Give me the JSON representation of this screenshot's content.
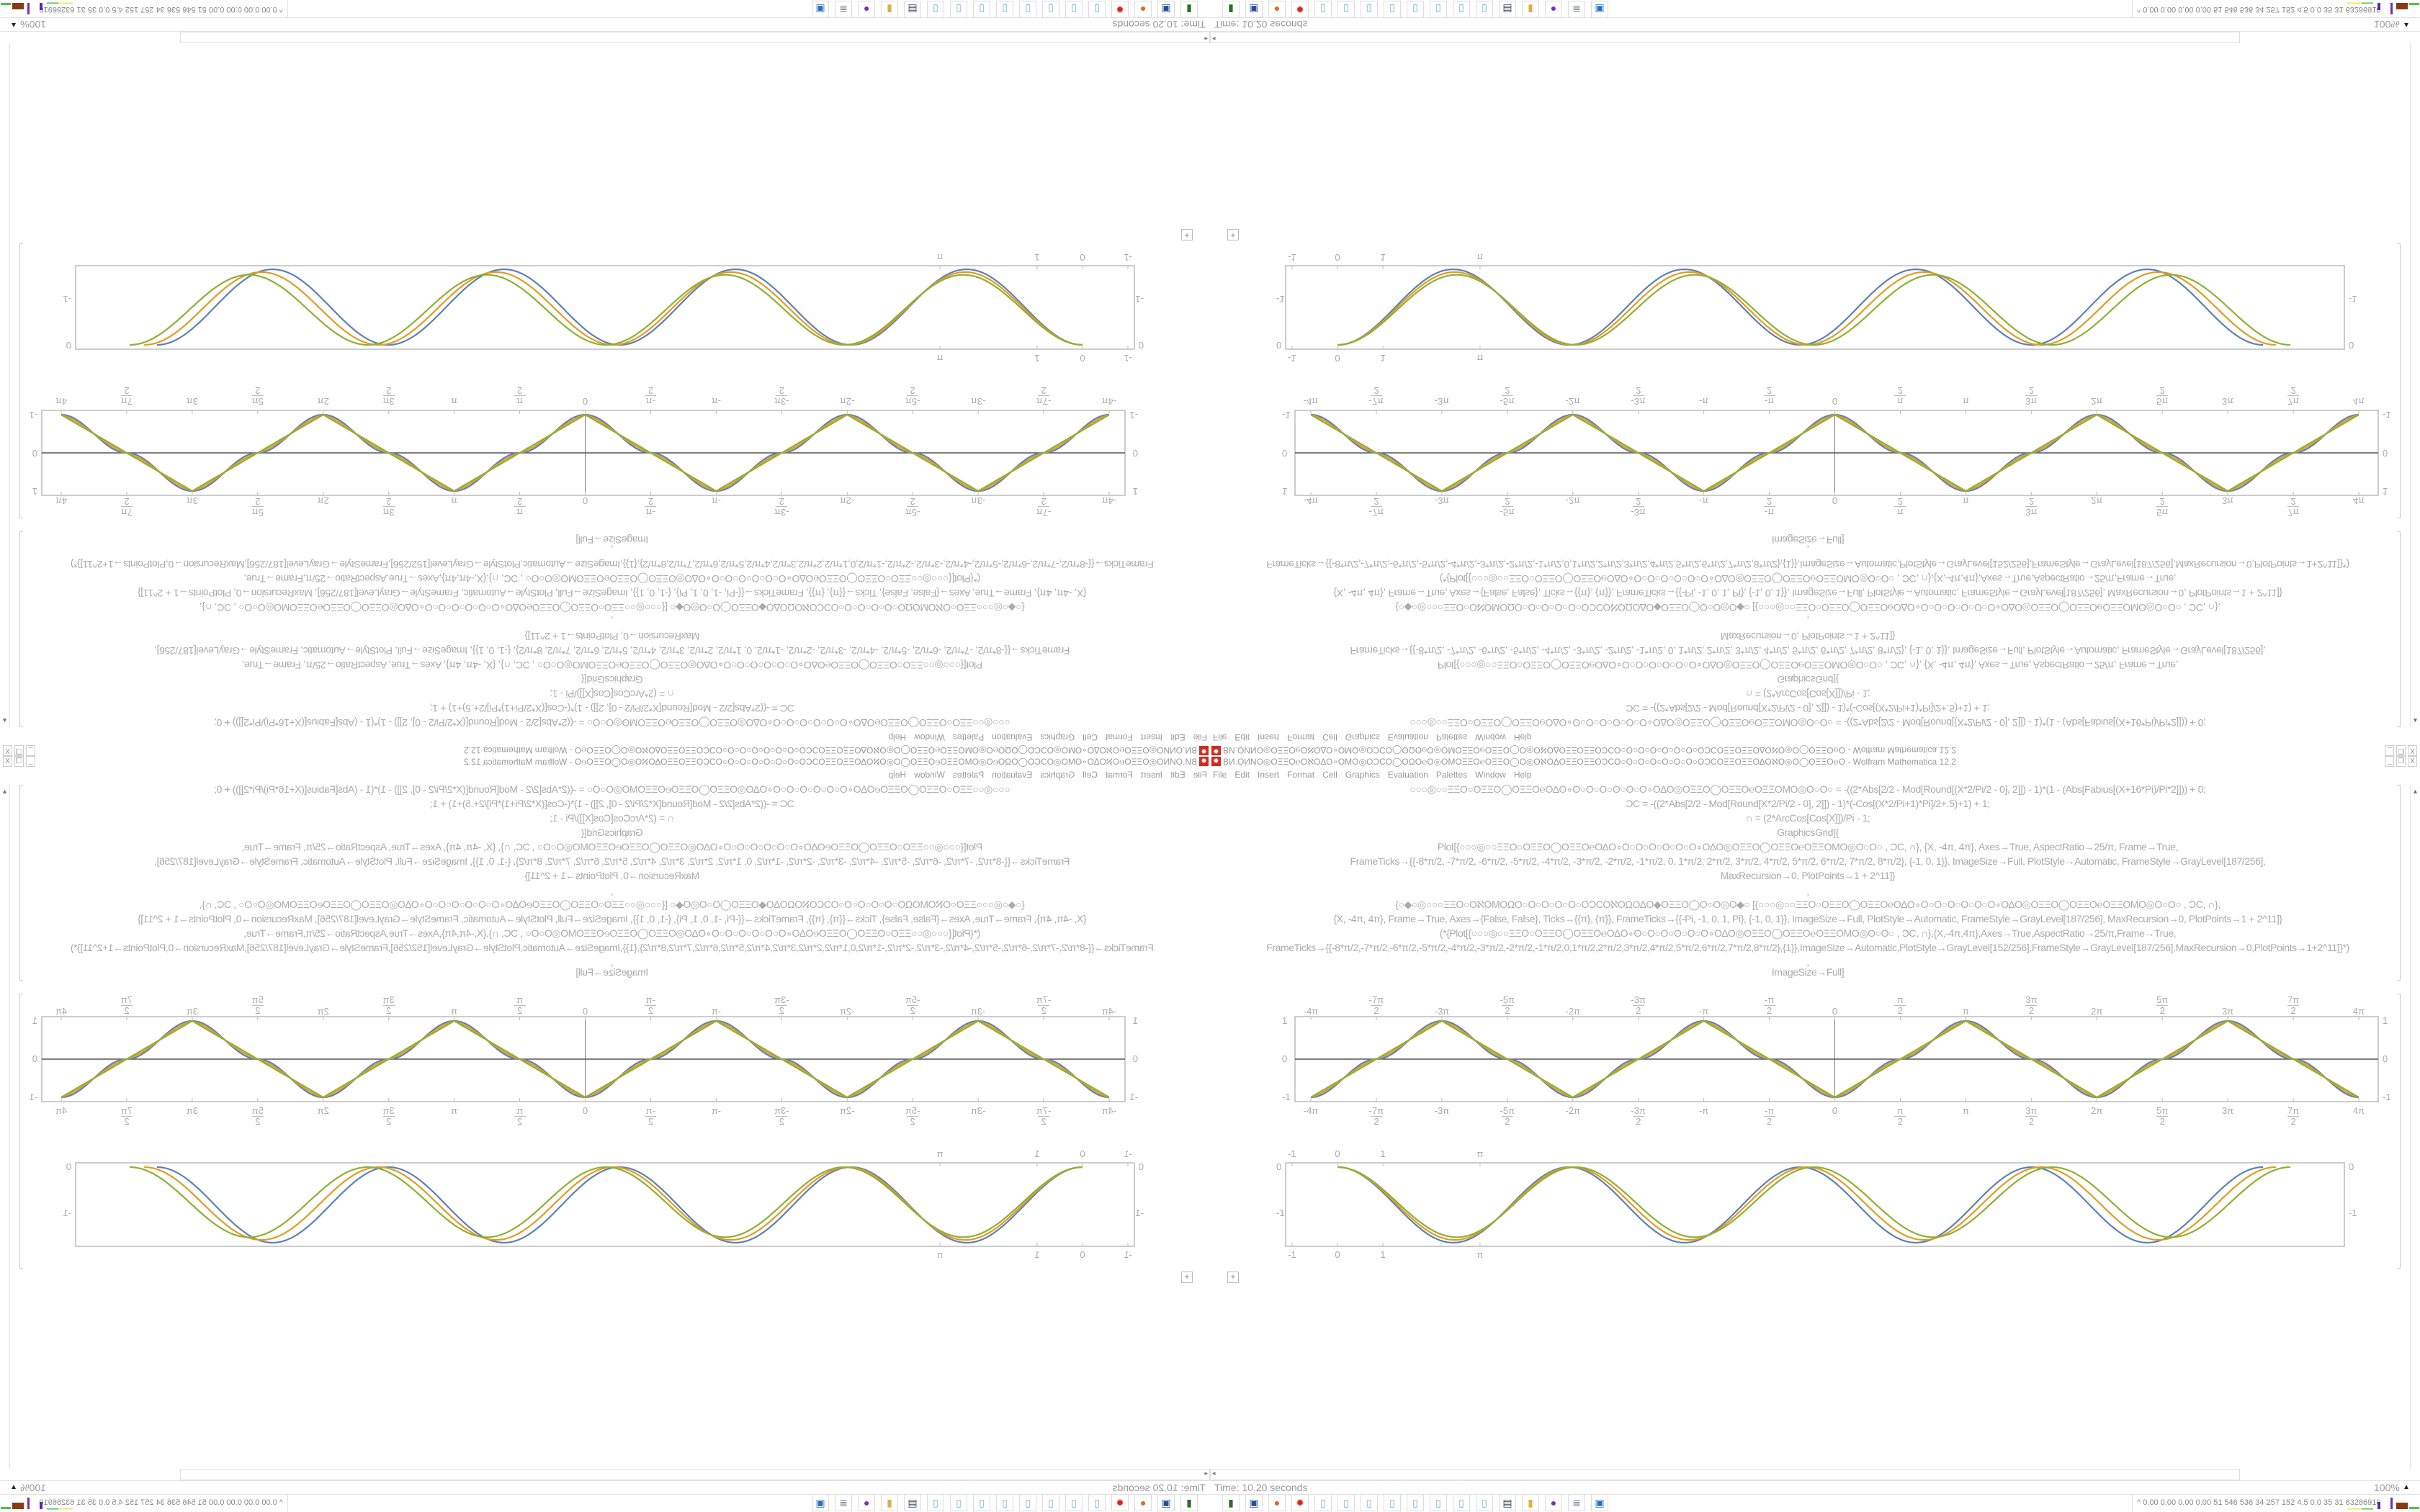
{
  "window": {
    "title": "ВИ.ОИNО◎ΟΞΞΟ℮ΟℵΟΔΟ∘ΟΜΟ◎ΟϽϹΟ◯ΟΩΟ℮Ο◎ΟΜΟΞΞΟ℮ΟΞΞΟ◯Ο◎ΟℵΟΔΟΞΞΟΞΞΟϽϹΟ○Ο○Ο○Ο○Ο○Ο○Ο○ΟϽϹΟΞΞΟΞΞΟΔΟℵΟ◎Ο◯ΟΞΞΟ℮Ο - Wolfram Mathematica 12.2",
    "icon": "mathematica-gear-icon",
    "buttons": {
      "minimize": "_",
      "restore": "❐",
      "close": "X"
    }
  },
  "menu": [
    "File",
    "Edit",
    "Insert",
    "Format",
    "Cell",
    "Graphics",
    "Evaluation",
    "Palettes",
    "Window",
    "Help"
  ],
  "notebook": {
    "code_lines": [
      "○○○◎○○ΞΞΟ○ΟΞΞΟ◯ΟΞΞΟ℮ΟΔΟ∘Ο○Ο○Ο○Ο○Ο○Ο∘ΟΔΟ◎ΟΞΞΟ◯ΟΞΞΟ℮ΟΞΞΟΜΟ◎Ο○Ο○   = -((2*Abs[2/2 - Mod[Round[(X*2/Pi/2 - 0], 2]]) - 1)*(1 - (Abs[Fabius[(X+16*Pi)/Pi*2]])) + 0;",
      "ϽC = -((2*Abs[2/2 - Mod[Round[X*2/Pi/2 - 0], 2]]) - 1)*(-Cos[(X*2/Pi+1)*Pi]/2+.5)+1) + 1;",
      "∩ = (2*ArcCos[Cos[X]])/Pi - 1;",
      "GraphicsGrid[{",
      "Plot[{○○○◎○○ΞΞΟ○ΟΞΞΟ◯ΟΞΞΟ℮ΟΔΟ∘Ο○Ο○Ο○Ο○Ο○Ο∘ΟΔΟ◎ΟΞΞΟ◯ΟΞΞΟ℮ΟΞΞΟΜΟ◎Ο○Ο○ , ϽC, ∩}, {X, -4π, 4π}, Axes→True, AspectRatio→25/π, Frame→True,",
      "FrameTicks→{{-8*π/2, -7*π/2, -6*π/2, -5*π/2, -4*π/2, -3*π/2, -2*π/2, -1*π/2, 0, 1*π/2, 2*π/2, 3*π/2, 4*π/2, 5*π/2, 6*π/2, 7*π/2, 8*π/2}, {-1, 0, 1}}, ImageSize→Full, PlotStyle→Automatic, FrameStyle→GrayLevel[187/256],",
      "MaxRecursion→0, PlotPoints→1 + 2^11]}",
      ",",
      "{○◆○◎○○○ΞΞΟ○ΟℵΟΜΟΩΟ○Ο○Ο○Ο○Ο○ΟϽϹΟℵΟΩΟΔΟ◆ΟΞΞΟ◯Ο○Ο◎Ο◆○  [{○○○◎○○ΞΞΟ○ΟΞΞΟ◯ΟΞΞΟ℮ΟΔΟ∘Ο○Ο○Ο○Ο○Ο○Ο∘ΟΔΟ◎ΟΞΞΟ◯ΟΞΞΟ℮ΟΞΞΟΜΟ◎Ο○Ο○ , ϽC, ∩},",
      "{X, -4π, 4π}, Frame→True, Axes→{False, False}, Ticks→{{π}, {π}}, FrameTicks→{{-Pi, -1, 0, 1, Pi}, {-1, 0, 1}}, ImageSize→Full, PlotStyle→Automatic, FrameStyle→GrayLevel[187/256], MaxRecursion→0, PlotPoints→1 + 2^11]}",
      "(*{Plot[{○○○◎○○ΞΞΟ○ΟΞΞΟ◯ΟΞΞΟ℮ΟΔΟ∘Ο○Ο○Ο○Ο○Ο○Ο∘ΟΔΟ◎ΟΞΞΟ◯ΟΞΞΟ℮ΟΞΞΟΜΟ◎Ο○Ο○ , ϽC, ∩},{X,-4π,4π},Axes→True,AspectRatio→25/π,Frame→True,",
      "FrameTicks→{{-8*π/2,-7*π/2,-6*π/2,-5*π/2,-4*π/2,-3*π/2,-2*π/2,-1*π/2,0,1*π/2,2*π/2,3*π/2,4*π/2,5*π/2,6*π/2,7*π/2,8*π/2},{1}},ImageSize→Automatic,PlotStyle→GrayLevel[152/256],FrameStyle→GrayLevel[187/256],MaxRecursion→0,PlotPoints→1+2^11]}*)",
      ",",
      "ImageSize→Full]"
    ],
    "insert_cell": "+"
  },
  "chart_data": [
    {
      "type": "line",
      "xlim": [
        "-4π",
        "4π"
      ],
      "ylim": [
        -1,
        1
      ],
      "axes": true,
      "x_ticks": [
        {
          "num": "-4π",
          "den": ""
        },
        {
          "num": "-7π",
          "den": "2"
        },
        {
          "num": "-3π",
          "den": ""
        },
        {
          "num": "-5π",
          "den": "2"
        },
        {
          "num": "-2π",
          "den": ""
        },
        {
          "num": "-3π",
          "den": "2"
        },
        {
          "num": "-π",
          "den": ""
        },
        {
          "num": "-π",
          "den": "2"
        },
        {
          "num": "0",
          "den": ""
        },
        {
          "num": "π",
          "den": "2"
        },
        {
          "num": "π",
          "den": ""
        },
        {
          "num": "3π",
          "den": "2"
        },
        {
          "num": "2π",
          "den": ""
        },
        {
          "num": "5π",
          "den": "2"
        },
        {
          "num": "3π",
          "den": ""
        },
        {
          "num": "7π",
          "den": "2"
        },
        {
          "num": "4π",
          "den": ""
        }
      ],
      "y_ticks": [
        "1",
        "0",
        "-1"
      ],
      "series_colors": [
        "#5e81b5",
        "#e19c24",
        "#8fb032"
      ],
      "series_shape": [
        "smoothed triangle with plateaus at 0 and ±1",
        "intermediate",
        "triangle wave (2·ArcCos[Cos[x]])/π − 1"
      ]
    },
    {
      "type": "line",
      "xlim": [
        -1.15,
        22.2
      ],
      "ylim": [
        -1.72,
        0.1
      ],
      "x_ticks": [
        "-1",
        "0",
        "1",
        "π"
      ],
      "y_ticks": [
        "0",
        "-1"
      ],
      "series_colors": [
        "#5e81b5",
        "#e19c24",
        "#8fb032"
      ],
      "series_minimum": [
        -1.64,
        -1.58,
        -1.52
      ],
      "series_period": [
        5.1,
        5.17,
        5.25
      ],
      "cycles": 4
    }
  ],
  "statusbar": {
    "timer": "Time: 10.20 seconds",
    "zoom": "100%",
    "zoom_arrow": "▲"
  },
  "taskbar": {
    "icons": [
      {
        "name": "terminal-icon",
        "glyph": "▮",
        "color": "#2d6b2d"
      },
      {
        "name": "floppy-disk-icon",
        "glyph": "▣",
        "color": "#2a4d9a"
      },
      {
        "name": "firefox-icon",
        "glyph": "●",
        "color": "#e8641e"
      },
      {
        "name": "mathematica-icon",
        "glyph": "✹",
        "color": "#d42a1e"
      },
      {
        "name": "notepad-icon",
        "glyph": "▯",
        "color": "#6fb3c8"
      },
      {
        "name": "notepad-icon",
        "glyph": "▯",
        "color": "#6fb3c8"
      },
      {
        "name": "notepad-icon",
        "glyph": "▯",
        "color": "#6fb3c8"
      },
      {
        "name": "notepad-icon",
        "glyph": "▯",
        "color": "#6fb3c8"
      },
      {
        "name": "notepad-icon",
        "glyph": "▯",
        "color": "#6fb3c8"
      },
      {
        "name": "notepad-icon",
        "glyph": "▯",
        "color": "#6fb3c8"
      },
      {
        "name": "notepad-icon",
        "glyph": "▯",
        "color": "#6fb3c8"
      },
      {
        "name": "notepad-icon",
        "glyph": "▯",
        "color": "#6fb3c8"
      },
      {
        "name": "monitor-icon",
        "glyph": "▤",
        "color": "#3a4a5a"
      },
      {
        "name": "folder-icon",
        "glyph": "▮",
        "color": "#d9b24a"
      },
      {
        "name": "purple-app-icon",
        "glyph": "●",
        "color": "#7a2fc0"
      },
      {
        "name": "scroll-icon",
        "glyph": "≣",
        "color": "#667788"
      },
      {
        "name": "window-icon",
        "glyph": "▣",
        "color": "#2a6fc0"
      }
    ],
    "tray_text": "^  0.00 0.00 0.00 0.00  51  546  536  34  257  152  4.5  0.0  35  31  63286910"
  }
}
